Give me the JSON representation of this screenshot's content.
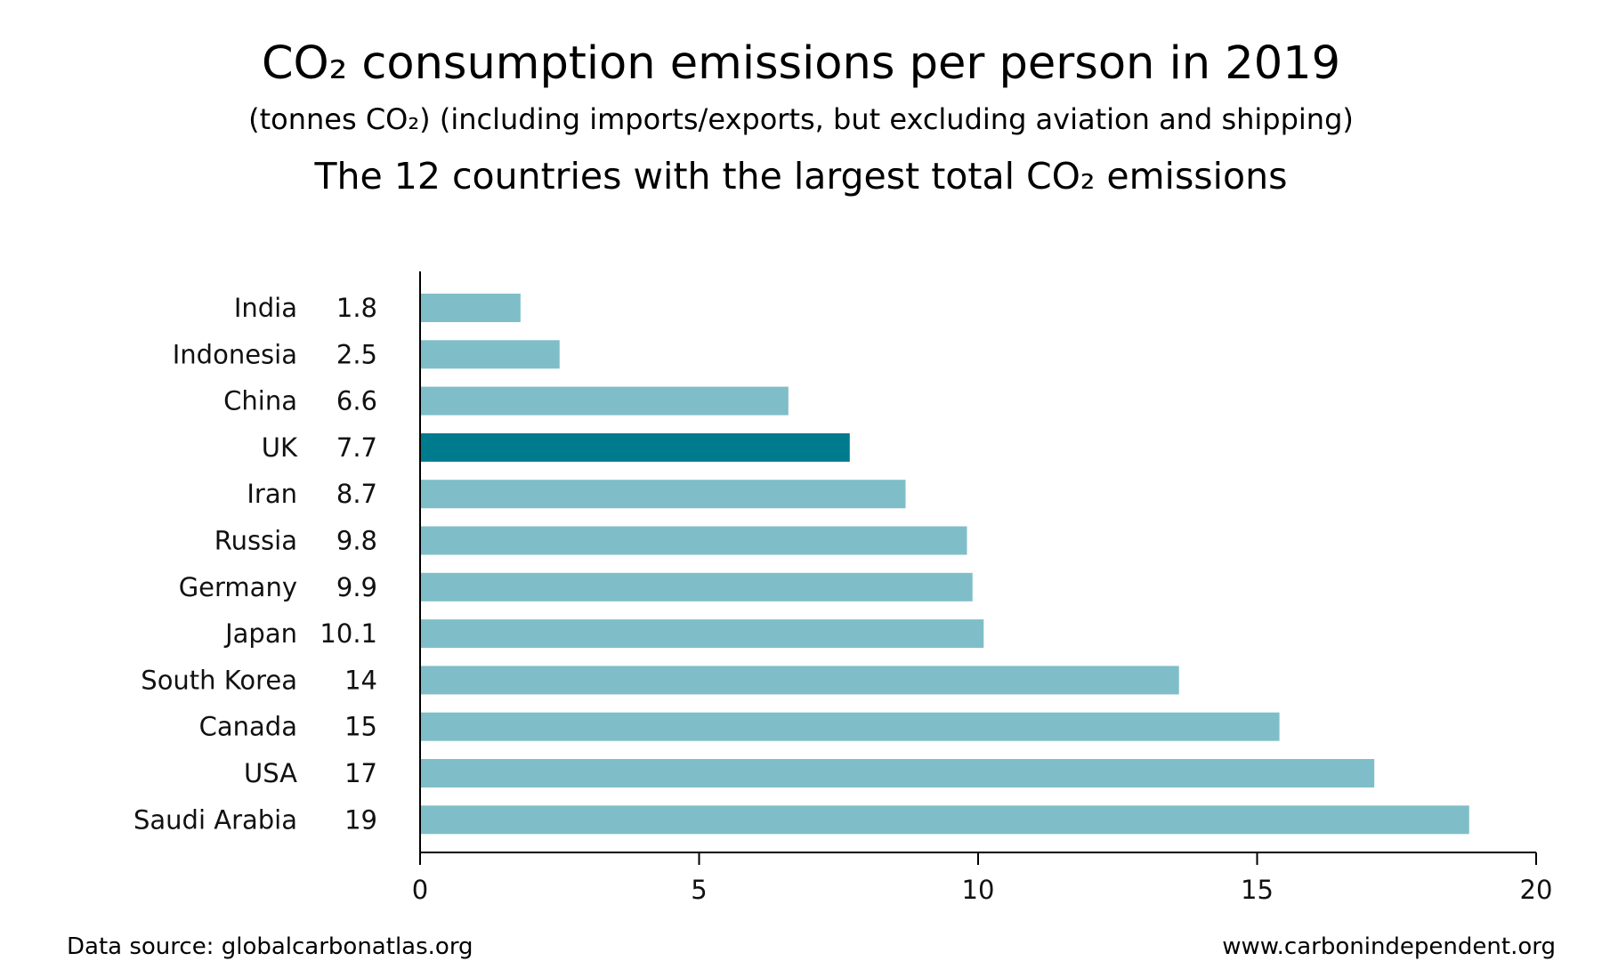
{
  "chart_data": {
    "type": "bar",
    "orientation": "horizontal",
    "title": "CO₂ consumption emissions per person in 2019",
    "subtitle": "(tonnes CO₂) (including imports/exports, but excluding aviation and shipping)",
    "subtitle2": "The 12 countries with the largest total CO₂ emissions",
    "categories": [
      "India",
      "Indonesia",
      "China",
      "UK",
      "Iran",
      "Russia",
      "Germany",
      "Japan",
      "South Korea",
      "Canada",
      "USA",
      "Saudi Arabia"
    ],
    "values": [
      1.8,
      2.5,
      6.6,
      7.7,
      8.7,
      9.8,
      9.9,
      10.1,
      13.6,
      15.4,
      17.1,
      18.8
    ],
    "value_labels": [
      "1.8",
      "2.5",
      "6.6",
      "7.7",
      "8.7",
      "9.8",
      "9.9",
      "10.1",
      "14",
      "15",
      "17",
      "19"
    ],
    "highlight_category": "UK",
    "xlim": [
      0,
      20
    ],
    "xticks": [
      0,
      5,
      10,
      15,
      20
    ],
    "xlabel": "",
    "ylabel": "",
    "grid": false,
    "colors": {
      "bar": "#7fbec8",
      "highlight": "#007b8e",
      "axis": "#000000",
      "text": "#111111"
    }
  },
  "footer": {
    "source": "Data source: globalcarbonatlas.org",
    "site": "www.carbonindependent.org"
  }
}
